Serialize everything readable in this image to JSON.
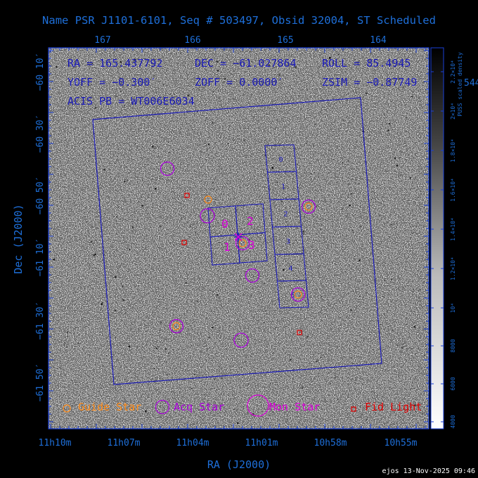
{
  "title": "Name PSR J1101-6101, Seq # 503497, Obsid 32004, ST Scheduled",
  "info": {
    "ra": "RA = 165.437792",
    "dec": "DEC = −61.027864",
    "roll": "ROLL = 85.4945",
    "yoff": "YOFF = −0.300′",
    "zoff": "ZOFF = 0.0000′",
    "zsim": "ZSIM = −0.87749",
    "acis_pb": "ACIS PB = WT006E6034",
    "right_num": "544"
  },
  "axes": {
    "xlabel": "RA (J2000)",
    "ylabel": "Dec (J2000)",
    "top_ticks": [
      "167",
      "166",
      "165",
      "164"
    ],
    "bottom_ticks": [
      "11h10m",
      "11h07m",
      "11h04m",
      "11h01m",
      "10h58m",
      "10h55m"
    ],
    "left_ticks": [
      "−60 10′",
      "−60 30′",
      "−60 50′",
      "−61 10′",
      "−61 30′",
      "−61 50′"
    ]
  },
  "colorbar": {
    "label": "PUSS scaled density",
    "ticks": [
      "2.2×10⁴",
      "2×10⁴",
      "1.8×10⁴",
      "1.6×10⁴",
      "1.4×10⁴",
      "1.2×10⁴",
      "10⁴",
      "8000",
      "6000",
      "4000"
    ]
  },
  "ccds": {
    "s_chips": [
      "0",
      "1",
      "2",
      "3",
      "4",
      "5"
    ],
    "i_chips": [
      "0",
      "2",
      "1",
      "3"
    ]
  },
  "legend": {
    "guide": "Guide Star",
    "acq": "Acq Star",
    "mon": "Mon Star",
    "fid": "Fid Light"
  },
  "footer": "ejos 13-Nov-2025 09:46",
  "colors": {
    "frame": "#1a3fd6",
    "label_blue": "#1e6fd9",
    "guide": "#ff8c1a",
    "acq": "#aa00dd",
    "mon": "#dd00dd",
    "fid": "#e00000",
    "ccd": "#1a1ab8"
  }
}
